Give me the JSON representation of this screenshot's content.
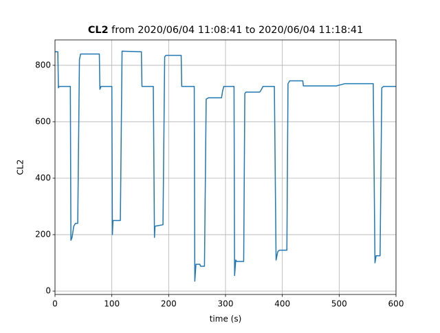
{
  "chart_data": {
    "type": "line",
    "title": {
      "bold": "CL2",
      "text": "from 2020/06/04 11:08:41 to 2020/06/04 11:18:41"
    },
    "xlabel": "time (s)",
    "ylabel": "CL2",
    "xlim": [
      0,
      600
    ],
    "ylim": [
      -12,
      890
    ],
    "xticks": [
      0,
      100,
      200,
      300,
      400,
      500,
      600
    ],
    "yticks": [
      0,
      200,
      400,
      600,
      800
    ],
    "grid": true,
    "series": [
      {
        "name": "CL2",
        "color": "#1f77b4",
        "x": [
          0,
          5,
          6,
          7,
          27,
          28,
          30,
          33,
          36,
          40,
          43,
          45,
          78,
          79,
          81,
          100,
          101,
          102,
          115,
          118,
          152,
          153,
          173,
          175,
          176,
          190,
          193,
          195,
          222,
          223,
          245,
          246,
          248,
          255,
          256,
          263,
          266,
          270,
          293,
          295,
          297,
          315,
          316,
          318,
          320,
          332,
          334,
          336,
          360,
          362,
          366,
          386,
          389,
          392,
          395,
          408,
          410,
          413,
          436,
          437,
          495,
          510,
          560,
          563,
          565,
          572,
          575,
          578,
          600
        ],
        "values": [
          848,
          848,
          720,
          725,
          725,
          180,
          190,
          230,
          240,
          240,
          820,
          840,
          840,
          715,
          725,
          725,
          200,
          250,
          250,
          850,
          848,
          725,
          725,
          190,
          230,
          235,
          830,
          835,
          835,
          725,
          725,
          35,
          95,
          95,
          88,
          88,
          680,
          685,
          685,
          710,
          725,
          725,
          55,
          110,
          105,
          105,
          700,
          705,
          705,
          710,
          725,
          725,
          110,
          140,
          145,
          145,
          735,
          745,
          745,
          727,
          727,
          735,
          735,
          100,
          125,
          125,
          720,
          725,
          725
        ]
      }
    ]
  }
}
